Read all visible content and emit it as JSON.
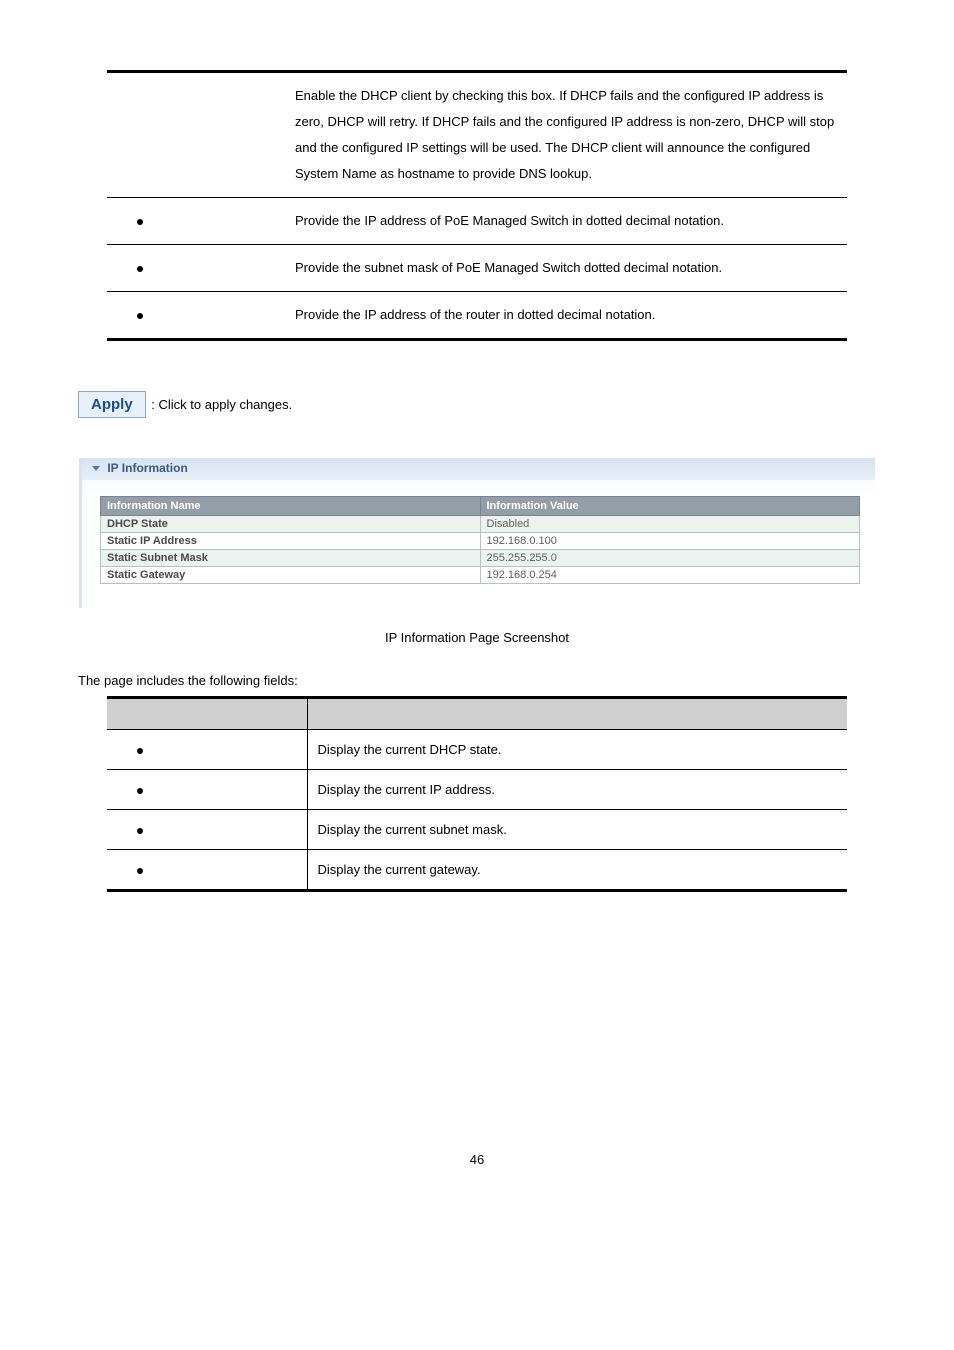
{
  "table1": {
    "rows": [
      {
        "text": "Enable the DHCP client by checking this box. If DHCP fails and the configured IP address is zero, DHCP will retry. If DHCP fails and the configured IP address is non-zero, DHCP will stop and the configured IP settings will be used. The DHCP client will announce the configured System Name as hostname to provide DNS lookup."
      },
      {
        "text": "Provide the IP address of PoE Managed Switch in dotted decimal notation."
      },
      {
        "text": "Provide the subnet mask of PoE Managed Switch dotted decimal notation."
      },
      {
        "text": "Provide the IP address of the router in dotted decimal notation."
      }
    ]
  },
  "apply": {
    "button": "Apply",
    "text": ": Click to apply changes."
  },
  "ip_panel": {
    "title": "IP Information",
    "header_name": "Information Name",
    "header_value": "Information Value",
    "rows": [
      {
        "name": "DHCP State",
        "value": "Disabled"
      },
      {
        "name": "Static IP Address",
        "value": "192.168.0.100"
      },
      {
        "name": "Static Subnet Mask",
        "value": "255.255.255.0"
      },
      {
        "name": "Static Gateway",
        "value": "192.168.0.254"
      }
    ]
  },
  "caption": "IP Information Page Screenshot",
  "fields_intro": "The page includes the following fields:",
  "table2": {
    "rows": [
      {
        "text": "Display the current DHCP state."
      },
      {
        "text": "Display the current IP address."
      },
      {
        "text": "Display the current subnet mask."
      },
      {
        "text": "Display the current gateway."
      }
    ]
  },
  "page_number": "46"
}
